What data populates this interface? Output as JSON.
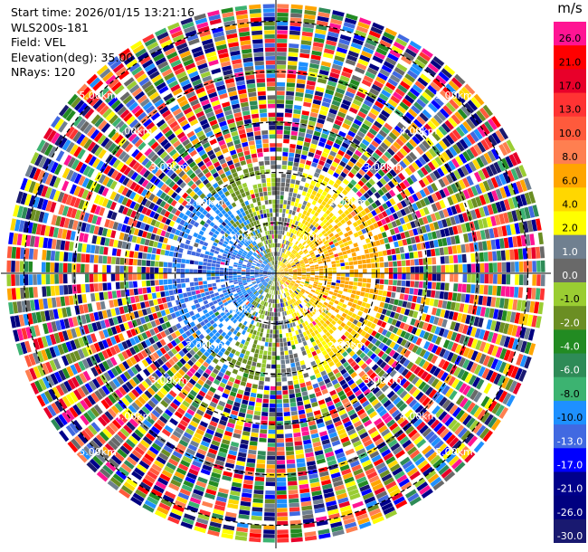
{
  "header": {
    "start_time": "Start time: 2026/01/15 13:21:16",
    "instrument": "WLS200s-181",
    "field": "Field: VEL",
    "elevation": "Elevation(deg): 35.00",
    "nrays": "NRays: 120"
  },
  "chart_data": {
    "type": "heatmap",
    "projection": "polar-ppi",
    "field": "VEL",
    "units": "m/s",
    "n_rays": 120,
    "range_rings_km": [
      1,
      2,
      3,
      4,
      5
    ],
    "ring_labels": [
      "1.00km",
      "2.00km",
      "3.00km",
      "4.00km",
      "5.00km"
    ],
    "max_range_km": 5.35,
    "colorbar": {
      "labels": [
        "26.0",
        "21.0",
        "17.0",
        "13.0",
        "10.0",
        "8.0",
        "6.0",
        "4.0",
        "2.0",
        "1.0",
        "0.0",
        "-1.0",
        "-2.0",
        "-4.0",
        "-6.0",
        "-8.0",
        "-10.0",
        "-13.0",
        "-17.0",
        "-21.0",
        "-26.0",
        "-30.0"
      ],
      "colors": [
        "#ff1493",
        "#ff0000",
        "#e8002a",
        "#ff3333",
        "#ff5a3c",
        "#ff7f50",
        "#ffa500",
        "#ffd700",
        "#ffff00",
        "#708090",
        "#696969",
        "#9acd32",
        "#6b8e23",
        "#228b22",
        "#2e8b57",
        "#3cb371",
        "#1e90ff",
        "#4169e1",
        "#0000ff",
        "#00008b",
        "#000080",
        "#191970"
      ]
    }
  }
}
